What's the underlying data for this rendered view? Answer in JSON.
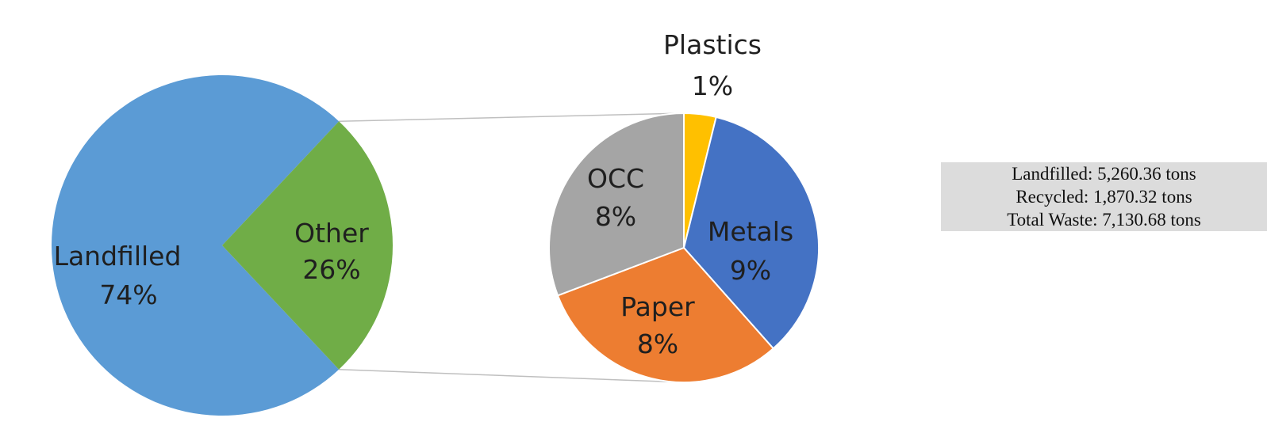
{
  "chart_data": [
    {
      "type": "pie",
      "slices": [
        {
          "label": "Landfilled",
          "value_label": "74%",
          "value": 74,
          "color": "#5b9bd5"
        },
        {
          "label": "Other",
          "value_label": "26%",
          "value": 26,
          "color": "#70ad47"
        }
      ]
    },
    {
      "type": "pie",
      "slices": [
        {
          "label": "Plastics",
          "value_label": "1%",
          "value": 1,
          "color": "#ffc000"
        },
        {
          "label": "Metals",
          "value_label": "9%",
          "value": 9,
          "color": "#4472c4"
        },
        {
          "label": "Paper",
          "value_label": "8%",
          "value": 8,
          "color": "#ed7d31"
        },
        {
          "label": "OCC",
          "value_label": "8%",
          "value": 8,
          "color": "#a5a5a5"
        }
      ]
    }
  ],
  "summary": {
    "landfilled": "Landfilled: 5,260.36 tons",
    "recycled": "Recycled: 1,870.32 tons",
    "total": "Total Waste: 7,130.68 tons"
  }
}
